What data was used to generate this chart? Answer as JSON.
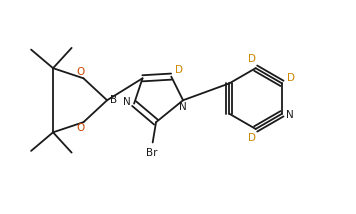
{
  "background_color": "#ffffff",
  "line_color": "#1a1a1a",
  "N_color": "#1a1a1a",
  "O_color": "#cc4400",
  "B_color": "#1a1a1a",
  "Br_color": "#1a1a1a",
  "D_color": "#cc8800",
  "figsize": [
    3.56,
    2.14
  ],
  "dpi": 100,
  "xlim": [
    0,
    10.5
  ],
  "ylim": [
    0,
    6
  ]
}
